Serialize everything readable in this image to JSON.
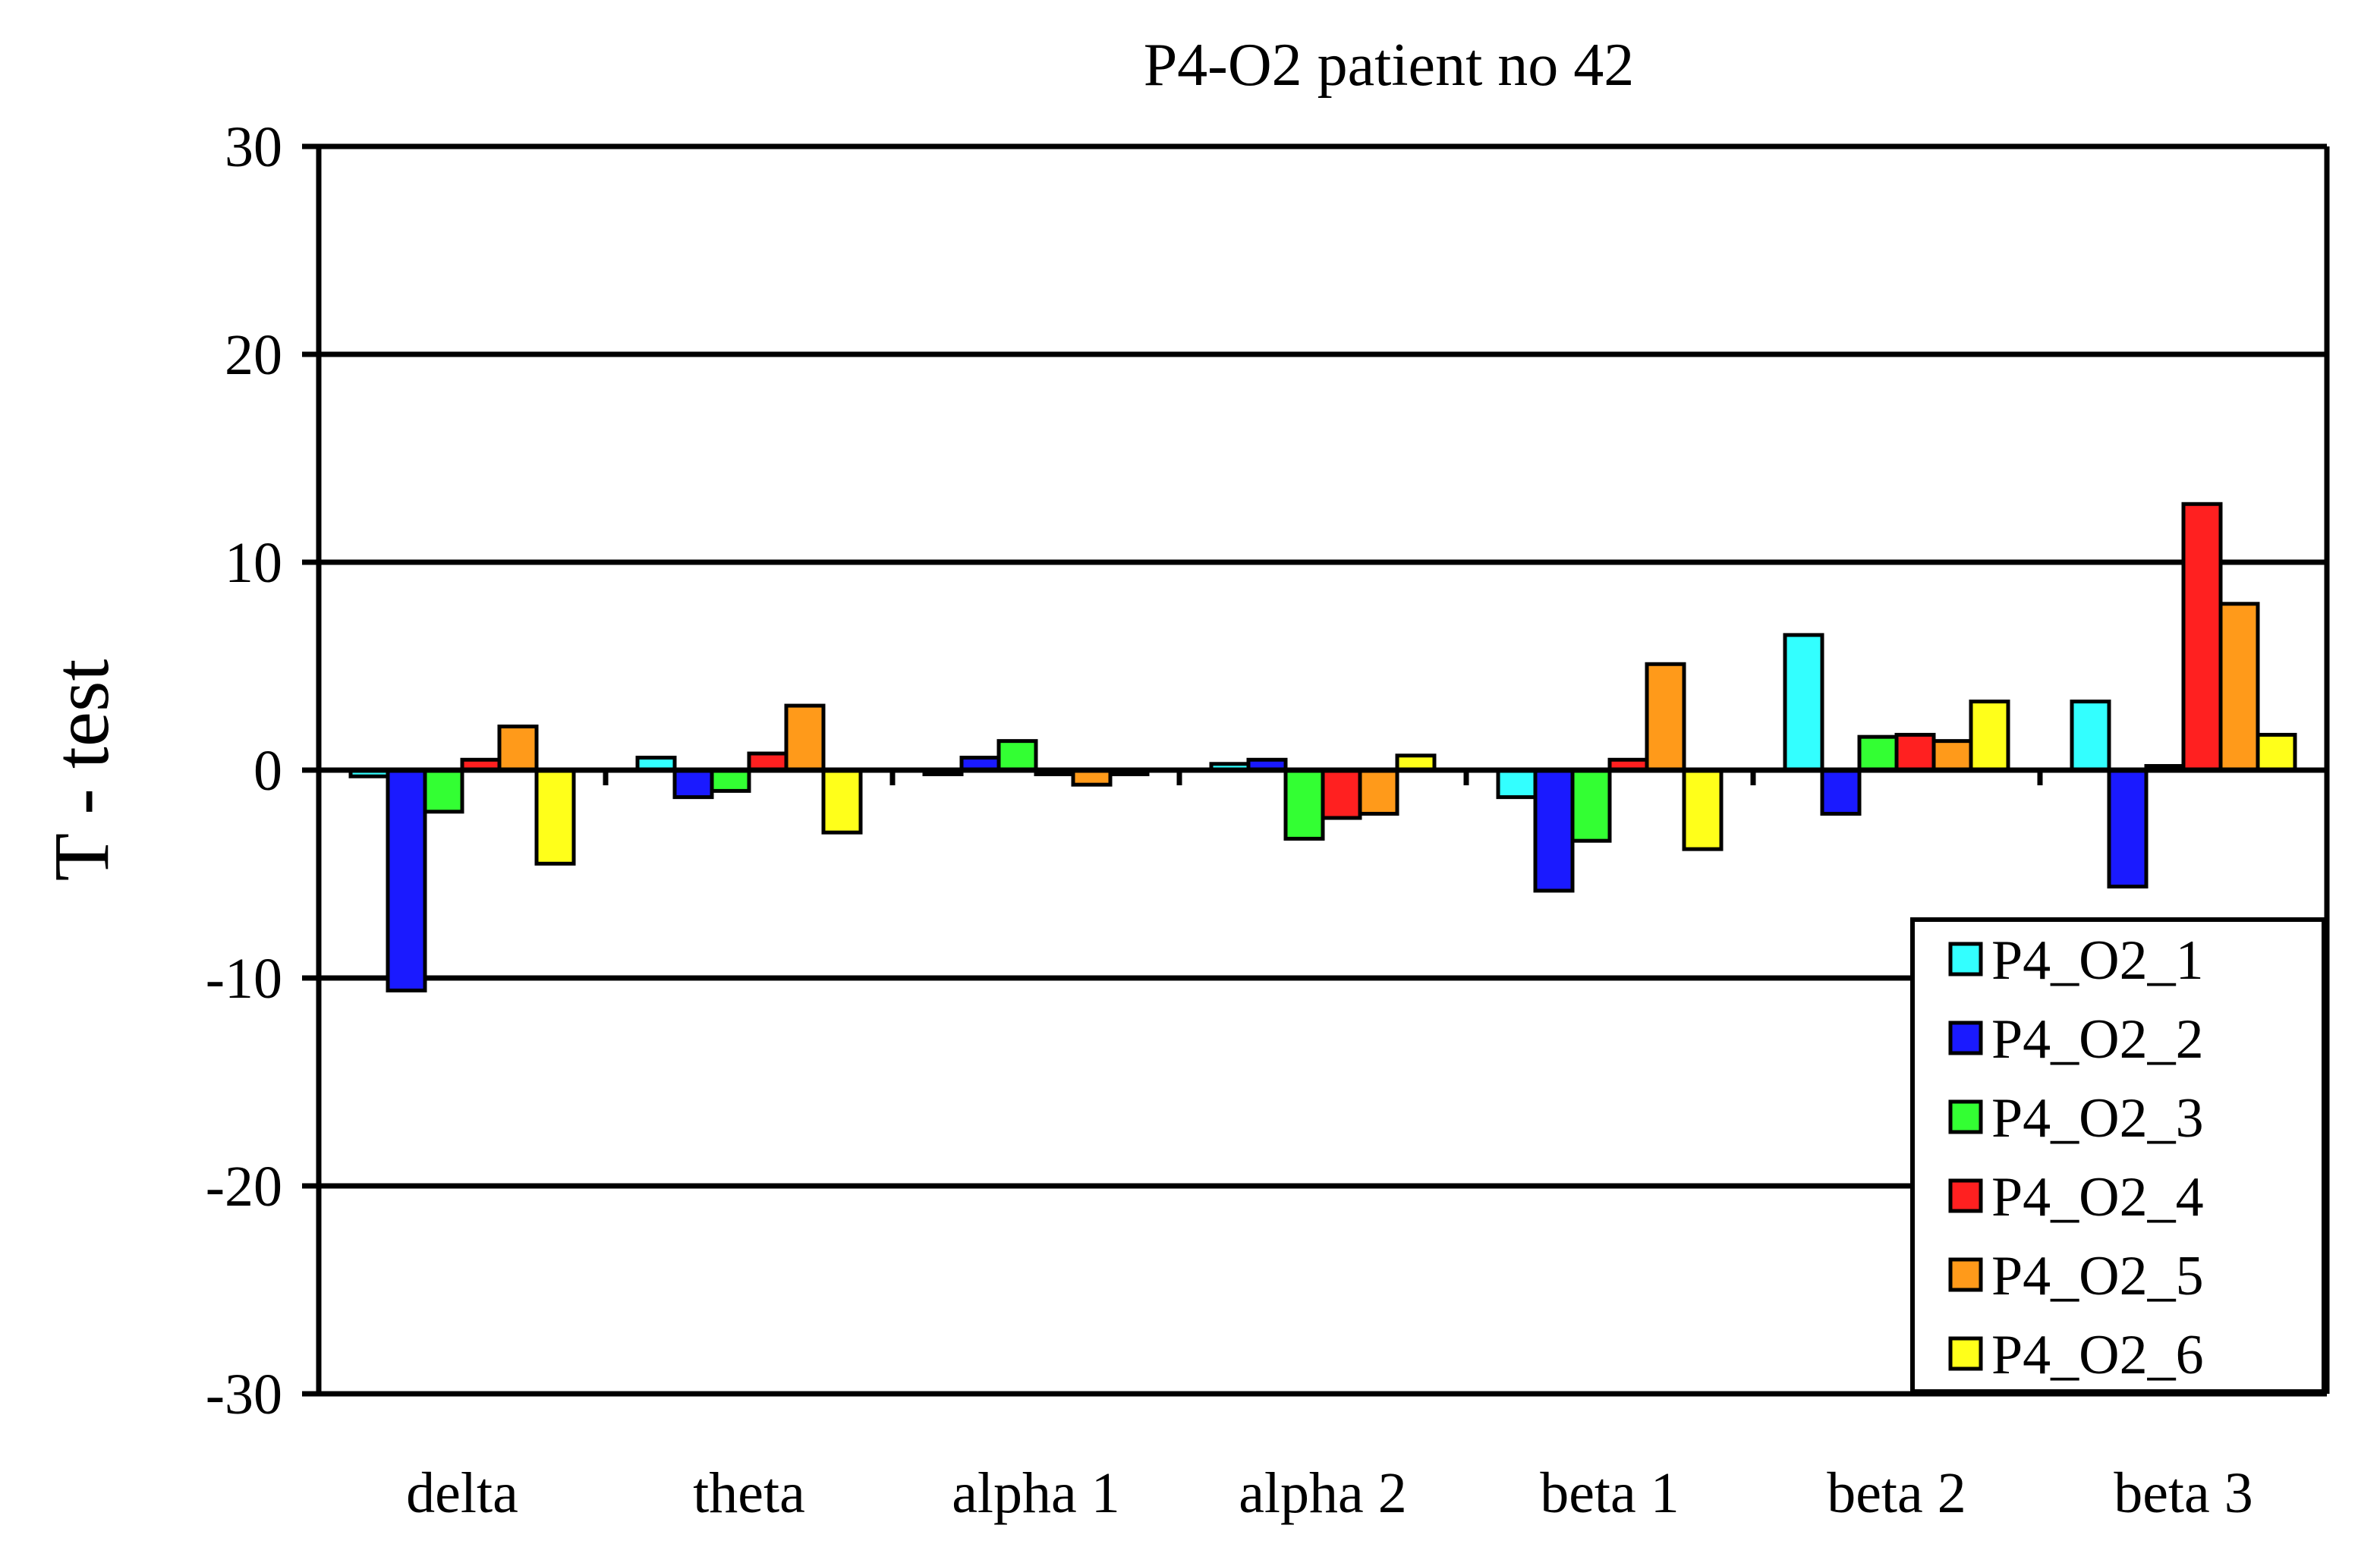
{
  "chart_data": {
    "type": "bar",
    "title": "P4-O2 patient no 42",
    "xlabel": "",
    "ylabel": "T - test",
    "ylim": [
      -30,
      30
    ],
    "yticks": [
      30,
      20,
      10,
      0,
      -10,
      -20,
      -30
    ],
    "ytick_labels": [
      "30",
      "20",
      "10",
      "0",
      "-10",
      "-20",
      "-30"
    ],
    "grid": true,
    "legend_position": "bottom-right",
    "categories": [
      "delta",
      "theta",
      "alpha 1",
      "alpha 2",
      "beta 1",
      "beta 2",
      "beta 3"
    ],
    "series": [
      {
        "name": "P4_O2_1",
        "color": "#33ffff",
        "values": [
          -0.3,
          0.6,
          -0.2,
          0.3,
          -1.3,
          6.5,
          3.3
        ]
      },
      {
        "name": "P4_O2_2",
        "color": "#1a1aff",
        "values": [
          -10.6,
          -1.3,
          0.6,
          0.5,
          -5.8,
          -2.1,
          -5.6
        ]
      },
      {
        "name": "P4_O2_3",
        "color": "#33ff33",
        "values": [
          -2.0,
          -1.0,
          1.4,
          -3.3,
          -3.4,
          1.6,
          0.2
        ]
      },
      {
        "name": "P4_O2_4",
        "color": "#ff2020",
        "values": [
          0.5,
          0.8,
          -0.2,
          -2.3,
          0.5,
          1.7,
          12.8
        ]
      },
      {
        "name": "P4_O2_5",
        "color": "#ff9a1a",
        "values": [
          2.1,
          3.1,
          -0.7,
          -2.1,
          5.1,
          1.4,
          8.0
        ]
      },
      {
        "name": "P4_O2_6",
        "color": "#ffff1a",
        "values": [
          -4.5,
          -3.0,
          -0.2,
          0.7,
          -3.8,
          3.3,
          1.7
        ]
      }
    ]
  }
}
